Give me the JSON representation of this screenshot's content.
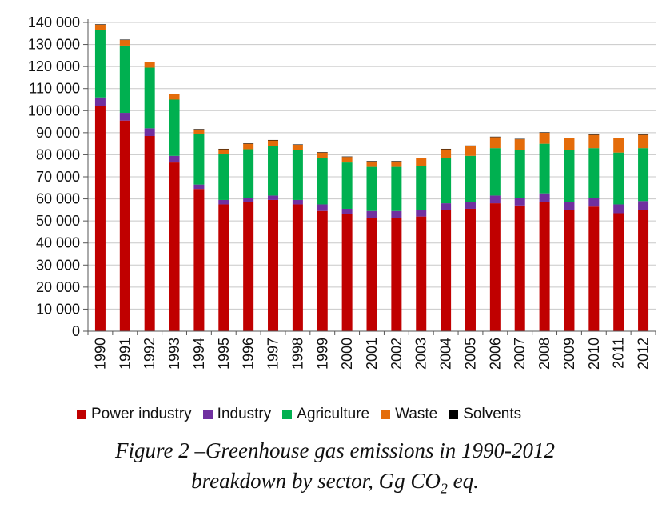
{
  "chart_data": {
    "type": "bar",
    "stacked": true,
    "categories": [
      "1990",
      "1991",
      "1992",
      "1993",
      "1994",
      "1995",
      "1996",
      "1997",
      "1998",
      "1999",
      "2000",
      "2001",
      "2002",
      "2003",
      "2004",
      "2005",
      "2006",
      "2007",
      "2008",
      "2009",
      "2010",
      "2011",
      "2012"
    ],
    "ylim": [
      0,
      140000
    ],
    "yticks": [
      "0",
      "10 000",
      "20 000",
      "30 000",
      "40 000",
      "50 000",
      "60 000",
      "70 000",
      "80 000",
      "90 000",
      "100 000",
      "110 000",
      "120 000",
      "130 000",
      "140 000"
    ],
    "grid": true,
    "legend_position": "bottom",
    "series": [
      {
        "name": "Power industry",
        "color": "#c00000",
        "values": [
          102000,
          95500,
          88500,
          76500,
          64500,
          57500,
          58500,
          59500,
          57500,
          54500,
          53000,
          51500,
          51500,
          52000,
          55000,
          55500,
          58000,
          57000,
          58500,
          55000,
          56500,
          53500,
          55000
        ]
      },
      {
        "name": "Industry",
        "color": "#7030a0",
        "values": [
          4000,
          3500,
          3500,
          3000,
          2000,
          2000,
          2000,
          2000,
          2000,
          3000,
          2500,
          3000,
          3000,
          3000,
          3000,
          3000,
          3500,
          3500,
          4000,
          3500,
          4000,
          4000,
          4000
        ]
      },
      {
        "name": "Agriculture",
        "color": "#00b050",
        "values": [
          30500,
          30500,
          27500,
          25500,
          23000,
          21000,
          22000,
          22500,
          22500,
          21000,
          21000,
          20000,
          20000,
          20000,
          20500,
          21000,
          21500,
          21500,
          22500,
          23500,
          22500,
          23500,
          24000
        ]
      },
      {
        "name": "Waste",
        "color": "#e46c0a",
        "values": [
          2500,
          2500,
          2500,
          2500,
          2000,
          2000,
          2500,
          2500,
          2500,
          2500,
          2500,
          2500,
          2500,
          3500,
          4000,
          4500,
          5000,
          5000,
          5000,
          5500,
          6000,
          6500,
          6000
        ]
      },
      {
        "name": "Solvents",
        "color": "#000000",
        "values": [
          200,
          200,
          200,
          200,
          200,
          200,
          200,
          200,
          200,
          200,
          200,
          200,
          200,
          200,
          200,
          200,
          200,
          200,
          200,
          200,
          200,
          200,
          200
        ]
      }
    ]
  },
  "caption": {
    "line1": "Figure 2 –Greenhouse gas emissions in 1990-2012",
    "line2_prefix": "breakdown by sector, Gg CO",
    "line2_sub": "2",
    "line2_suffix": " eq."
  }
}
